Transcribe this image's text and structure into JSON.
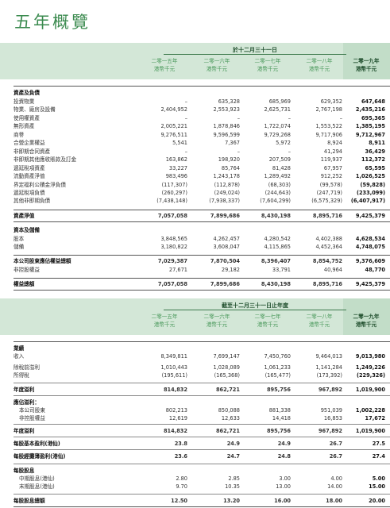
{
  "title": "五年概覽",
  "col_labels": [
    {
      "year": "二零一五年",
      "unit": "港幣千元"
    },
    {
      "year": "二零一六年",
      "unit": "港幣千元"
    },
    {
      "year": "二零一七年",
      "unit": "港幣千元"
    },
    {
      "year": "二零一八年",
      "unit": "港幣千元"
    },
    {
      "year": "二零一九年",
      "unit": "港幣千元"
    }
  ],
  "balance_sheet": {
    "caption": "於十二月三十一日",
    "rows": [
      {
        "label": "資產及負債",
        "type": "section",
        "values": []
      },
      {
        "label": "投資物業",
        "values": [
          "–",
          "635,328",
          "685,969",
          "629,352",
          "647,648"
        ]
      },
      {
        "label": "物業、廠房及設備",
        "values": [
          "2,404,952",
          "2,553,923",
          "2,625,731",
          "2,767,198",
          "2,435,216"
        ]
      },
      {
        "label": "使用權資產",
        "values": [
          "–",
          "–",
          "–",
          "–",
          "695,365"
        ]
      },
      {
        "label": "無形資產",
        "values": [
          "2,005,221",
          "1,878,846",
          "1,722,074",
          "1,553,522",
          "1,385,195"
        ]
      },
      {
        "label": "商譽",
        "values": [
          "9,276,511",
          "9,596,599",
          "9,729,268",
          "9,717,906",
          "9,712,967"
        ]
      },
      {
        "label": "合營企業權益",
        "values": [
          "5,541",
          "7,367",
          "5,972",
          "8,924",
          "8,911"
        ]
      },
      {
        "label": "非即期合同資產",
        "values": [
          "–",
          "–",
          "–",
          "41,294",
          "36,429"
        ]
      },
      {
        "label": "非即期其他應收賬款及訂金",
        "values": [
          "163,862",
          "198,920",
          "207,509",
          "119,937",
          "112,372"
        ]
      },
      {
        "label": "遞延稅項資產",
        "values": [
          "33,227",
          "85,764",
          "81,428",
          "67,957",
          "65,595"
        ]
      },
      {
        "label": "流動資產淨值",
        "values": [
          "983,496",
          "1,243,178",
          "1,289,492",
          "912,252",
          "1,026,525"
        ]
      },
      {
        "label": "界定福利公積金淨負債",
        "values": [
          "(117,307)",
          "(112,878)",
          "(68,303)",
          "(99,578)",
          "(59,828)"
        ]
      },
      {
        "label": "遞延稅項負債",
        "values": [
          "(260,297)",
          "(249,024)",
          "(244,643)",
          "(247,719)",
          "(233,099)"
        ]
      },
      {
        "label": "其他非即期負債",
        "values": [
          "(7,438,148)",
          "(7,938,337)",
          "(7,604,299)",
          "(6,575,329)",
          "(6,407,917)"
        ]
      },
      {
        "label": "資產淨值",
        "type": "total",
        "values": [
          "7,057,058",
          "7,899,686",
          "8,430,198",
          "8,895,716",
          "9,425,379"
        ]
      },
      {
        "label": "資本及儲備",
        "type": "section",
        "values": []
      },
      {
        "label": "股本",
        "values": [
          "3,848,565",
          "4,262,457",
          "4,280,542",
          "4,402,388",
          "4,628,534"
        ]
      },
      {
        "label": "儲備",
        "values": [
          "3,180,822",
          "3,608,047",
          "4,115,865",
          "4,452,364",
          "4,748,075"
        ]
      },
      {
        "label": "本公司股東應佔權益總額",
        "type": "total",
        "values": [
          "7,029,387",
          "7,870,504",
          "8,396,407",
          "8,854,752",
          "9,376,609"
        ]
      },
      {
        "label": "非控股權益",
        "values": [
          "27,671",
          "29,182",
          "33,791",
          "40,964",
          "48,770"
        ]
      },
      {
        "label": "權益總額",
        "type": "total",
        "values": [
          "7,057,058",
          "7,899,686",
          "8,430,198",
          "8,895,716",
          "9,425,379"
        ]
      }
    ]
  },
  "income_statement": {
    "caption": "截至十二月三十一日止年度",
    "rows": [
      {
        "label": "業績",
        "type": "section",
        "values": []
      },
      {
        "label": "收入",
        "values": [
          "8,349,811",
          "7,699,147",
          "7,450,760",
          "9,464,013",
          "9,013,980"
        ]
      },
      {
        "label": "除稅前溢利",
        "values": [
          "1,010,443",
          "1,028,089",
          "1,061,233",
          "1,141,284",
          "1,249,226"
        ]
      },
      {
        "label": "所得稅",
        "values": [
          "(195,611)",
          "(165,368)",
          "(165,477)",
          "(173,392)",
          "(229,326)"
        ]
      },
      {
        "label": "年度溢利",
        "type": "total",
        "values": [
          "814,832",
          "862,721",
          "895,756",
          "967,892",
          "1,019,900"
        ]
      },
      {
        "label": "應佔溢利：",
        "type": "section",
        "values": []
      },
      {
        "label": "本公司股東",
        "indent": true,
        "values": [
          "802,213",
          "850,088",
          "881,338",
          "951,039",
          "1,002,228"
        ]
      },
      {
        "label": "非控股權益",
        "indent": true,
        "values": [
          "12,619",
          "12,633",
          "14,418",
          "16,853",
          "17,672"
        ]
      },
      {
        "label": "年度溢利",
        "type": "total",
        "values": [
          "814,832",
          "862,721",
          "895,756",
          "967,892",
          "1,019,900"
        ]
      },
      {
        "label": "每股基本盈利(港仙)",
        "type": "total",
        "values": [
          "23.8",
          "24.9",
          "24.9",
          "26.7",
          "27.5"
        ]
      },
      {
        "label": "每股經攤薄盈利(港仙)",
        "type": "total",
        "values": [
          "23.6",
          "24.7",
          "24.8",
          "26.7",
          "27.4"
        ]
      },
      {
        "label": "每股股息",
        "type": "section",
        "values": []
      },
      {
        "label": "中期股息(港仙)",
        "indent": true,
        "values": [
          "2.80",
          "2.85",
          "3.00",
          "4.00",
          "5.00"
        ]
      },
      {
        "label": "末期股息(港仙)",
        "indent": true,
        "values": [
          "9.70",
          "10.35",
          "13.00",
          "14.00",
          "15.00"
        ]
      },
      {
        "label": "每股股息總額",
        "type": "total",
        "values": [
          "12.50",
          "13.20",
          "16.00",
          "18.00",
          "20.00"
        ]
      }
    ]
  }
}
